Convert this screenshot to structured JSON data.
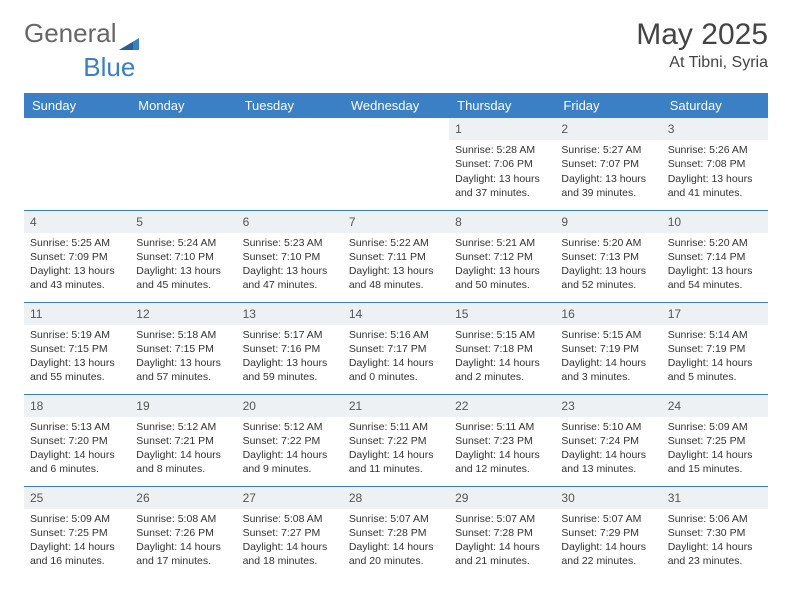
{
  "brand": {
    "part1": "General",
    "part2": "Blue"
  },
  "title": {
    "month": "May 2025",
    "location": "At Tibni, Syria"
  },
  "colors": {
    "accent": "#3b7fc4",
    "header_text": "#ffffff",
    "daybar": "#eef1f3"
  },
  "weekdays": [
    "Sunday",
    "Monday",
    "Tuesday",
    "Wednesday",
    "Thursday",
    "Friday",
    "Saturday"
  ],
  "weeks": [
    [
      {
        "empty": true
      },
      {
        "empty": true
      },
      {
        "empty": true
      },
      {
        "empty": true
      },
      {
        "day": "1",
        "sunrise": "Sunrise: 5:28 AM",
        "sunset": "Sunset: 7:06 PM",
        "dl1": "Daylight: 13 hours",
        "dl2": "and 37 minutes."
      },
      {
        "day": "2",
        "sunrise": "Sunrise: 5:27 AM",
        "sunset": "Sunset: 7:07 PM",
        "dl1": "Daylight: 13 hours",
        "dl2": "and 39 minutes."
      },
      {
        "day": "3",
        "sunrise": "Sunrise: 5:26 AM",
        "sunset": "Sunset: 7:08 PM",
        "dl1": "Daylight: 13 hours",
        "dl2": "and 41 minutes."
      }
    ],
    [
      {
        "day": "4",
        "sunrise": "Sunrise: 5:25 AM",
        "sunset": "Sunset: 7:09 PM",
        "dl1": "Daylight: 13 hours",
        "dl2": "and 43 minutes."
      },
      {
        "day": "5",
        "sunrise": "Sunrise: 5:24 AM",
        "sunset": "Sunset: 7:10 PM",
        "dl1": "Daylight: 13 hours",
        "dl2": "and 45 minutes."
      },
      {
        "day": "6",
        "sunrise": "Sunrise: 5:23 AM",
        "sunset": "Sunset: 7:10 PM",
        "dl1": "Daylight: 13 hours",
        "dl2": "and 47 minutes."
      },
      {
        "day": "7",
        "sunrise": "Sunrise: 5:22 AM",
        "sunset": "Sunset: 7:11 PM",
        "dl1": "Daylight: 13 hours",
        "dl2": "and 48 minutes."
      },
      {
        "day": "8",
        "sunrise": "Sunrise: 5:21 AM",
        "sunset": "Sunset: 7:12 PM",
        "dl1": "Daylight: 13 hours",
        "dl2": "and 50 minutes."
      },
      {
        "day": "9",
        "sunrise": "Sunrise: 5:20 AM",
        "sunset": "Sunset: 7:13 PM",
        "dl1": "Daylight: 13 hours",
        "dl2": "and 52 minutes."
      },
      {
        "day": "10",
        "sunrise": "Sunrise: 5:20 AM",
        "sunset": "Sunset: 7:14 PM",
        "dl1": "Daylight: 13 hours",
        "dl2": "and 54 minutes."
      }
    ],
    [
      {
        "day": "11",
        "sunrise": "Sunrise: 5:19 AM",
        "sunset": "Sunset: 7:15 PM",
        "dl1": "Daylight: 13 hours",
        "dl2": "and 55 minutes."
      },
      {
        "day": "12",
        "sunrise": "Sunrise: 5:18 AM",
        "sunset": "Sunset: 7:15 PM",
        "dl1": "Daylight: 13 hours",
        "dl2": "and 57 minutes."
      },
      {
        "day": "13",
        "sunrise": "Sunrise: 5:17 AM",
        "sunset": "Sunset: 7:16 PM",
        "dl1": "Daylight: 13 hours",
        "dl2": "and 59 minutes."
      },
      {
        "day": "14",
        "sunrise": "Sunrise: 5:16 AM",
        "sunset": "Sunset: 7:17 PM",
        "dl1": "Daylight: 14 hours",
        "dl2": "and 0 minutes."
      },
      {
        "day": "15",
        "sunrise": "Sunrise: 5:15 AM",
        "sunset": "Sunset: 7:18 PM",
        "dl1": "Daylight: 14 hours",
        "dl2": "and 2 minutes."
      },
      {
        "day": "16",
        "sunrise": "Sunrise: 5:15 AM",
        "sunset": "Sunset: 7:19 PM",
        "dl1": "Daylight: 14 hours",
        "dl2": "and 3 minutes."
      },
      {
        "day": "17",
        "sunrise": "Sunrise: 5:14 AM",
        "sunset": "Sunset: 7:19 PM",
        "dl1": "Daylight: 14 hours",
        "dl2": "and 5 minutes."
      }
    ],
    [
      {
        "day": "18",
        "sunrise": "Sunrise: 5:13 AM",
        "sunset": "Sunset: 7:20 PM",
        "dl1": "Daylight: 14 hours",
        "dl2": "and 6 minutes."
      },
      {
        "day": "19",
        "sunrise": "Sunrise: 5:12 AM",
        "sunset": "Sunset: 7:21 PM",
        "dl1": "Daylight: 14 hours",
        "dl2": "and 8 minutes."
      },
      {
        "day": "20",
        "sunrise": "Sunrise: 5:12 AM",
        "sunset": "Sunset: 7:22 PM",
        "dl1": "Daylight: 14 hours",
        "dl2": "and 9 minutes."
      },
      {
        "day": "21",
        "sunrise": "Sunrise: 5:11 AM",
        "sunset": "Sunset: 7:22 PM",
        "dl1": "Daylight: 14 hours",
        "dl2": "and 11 minutes."
      },
      {
        "day": "22",
        "sunrise": "Sunrise: 5:11 AM",
        "sunset": "Sunset: 7:23 PM",
        "dl1": "Daylight: 14 hours",
        "dl2": "and 12 minutes."
      },
      {
        "day": "23",
        "sunrise": "Sunrise: 5:10 AM",
        "sunset": "Sunset: 7:24 PM",
        "dl1": "Daylight: 14 hours",
        "dl2": "and 13 minutes."
      },
      {
        "day": "24",
        "sunrise": "Sunrise: 5:09 AM",
        "sunset": "Sunset: 7:25 PM",
        "dl1": "Daylight: 14 hours",
        "dl2": "and 15 minutes."
      }
    ],
    [
      {
        "day": "25",
        "sunrise": "Sunrise: 5:09 AM",
        "sunset": "Sunset: 7:25 PM",
        "dl1": "Daylight: 14 hours",
        "dl2": "and 16 minutes."
      },
      {
        "day": "26",
        "sunrise": "Sunrise: 5:08 AM",
        "sunset": "Sunset: 7:26 PM",
        "dl1": "Daylight: 14 hours",
        "dl2": "and 17 minutes."
      },
      {
        "day": "27",
        "sunrise": "Sunrise: 5:08 AM",
        "sunset": "Sunset: 7:27 PM",
        "dl1": "Daylight: 14 hours",
        "dl2": "and 18 minutes."
      },
      {
        "day": "28",
        "sunrise": "Sunrise: 5:07 AM",
        "sunset": "Sunset: 7:28 PM",
        "dl1": "Daylight: 14 hours",
        "dl2": "and 20 minutes."
      },
      {
        "day": "29",
        "sunrise": "Sunrise: 5:07 AM",
        "sunset": "Sunset: 7:28 PM",
        "dl1": "Daylight: 14 hours",
        "dl2": "and 21 minutes."
      },
      {
        "day": "30",
        "sunrise": "Sunrise: 5:07 AM",
        "sunset": "Sunset: 7:29 PM",
        "dl1": "Daylight: 14 hours",
        "dl2": "and 22 minutes."
      },
      {
        "day": "31",
        "sunrise": "Sunrise: 5:06 AM",
        "sunset": "Sunset: 7:30 PM",
        "dl1": "Daylight: 14 hours",
        "dl2": "and 23 minutes."
      }
    ]
  ]
}
